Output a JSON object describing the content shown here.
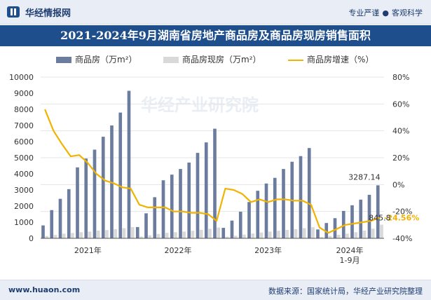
{
  "header": {
    "brand": "华经情报网",
    "slogan_left": "专业严谨",
    "slogan_dot": "●",
    "slogan_right": "客观科学"
  },
  "watermark": "华经产业研究院",
  "footer": {
    "site": "www.huaon.com",
    "source": "数据来源：国家统计局，华经产业研究院整理"
  },
  "colors": {
    "bar_primary": "#6b7c9e",
    "bar_secondary": "#d9d9d9",
    "line": "#f2b200",
    "title_bg": "#1f4e8c"
  },
  "chart_data": {
    "type": "bar+line",
    "title": "2021-2024年9月湖南省房地产商品房及商品房现房销售面积",
    "year_labels": [
      "2021年",
      "2022年",
      "2023年",
      "2024年\n1-9月"
    ],
    "series": [
      {
        "name": "商品房（万m²）",
        "type": "bar",
        "axis": "left",
        "values": [
          800,
          1750,
          2450,
          3050,
          4400,
          4950,
          5500,
          6300,
          7000,
          7800,
          9150,
          700,
          1550,
          2550,
          3600,
          3950,
          4300,
          4700,
          5300,
          5950,
          6800,
          650,
          1100,
          1650,
          2250,
          2950,
          3400,
          3750,
          4300,
          4750,
          5100,
          5600,
          550,
          950,
          1250,
          1700,
          2050,
          2400,
          2700,
          3287.14
        ]
      },
      {
        "name": "商品房现房（万m²）",
        "type": "bar",
        "axis": "left",
        "values": [
          140,
          210,
          290,
          330,
          380,
          420,
          480,
          510,
          570,
          630,
          700,
          110,
          190,
          270,
          340,
          380,
          420,
          470,
          530,
          590,
          670,
          100,
          160,
          230,
          300,
          360,
          420,
          470,
          520,
          570,
          630,
          690,
          80,
          150,
          220,
          290,
          380,
          480,
          600,
          845.8
        ]
      },
      {
        "name": "商品房增速（%）",
        "type": "line",
        "axis": "right",
        "values": [
          56,
          40,
          30,
          21,
          22,
          16,
          8,
          3,
          1,
          -2,
          -3,
          -15,
          -17,
          -17,
          -17,
          -20,
          -20,
          -21,
          -21,
          -22,
          -27,
          -3,
          -4,
          -7,
          -13,
          -11,
          -13,
          -11,
          -11,
          -12,
          -12,
          -15,
          -32,
          -36,
          -33,
          -30,
          -29,
          -28,
          -27,
          -24.56
        ]
      }
    ],
    "left_axis": {
      "min": 0,
      "max": 10000,
      "step": 1000
    },
    "right_axis": {
      "min": -40,
      "max": 80,
      "step": 20,
      "unit": "%"
    },
    "annotations": [
      {
        "text": "3287.14",
        "series": 0,
        "index": 39
      },
      {
        "text": "-24.56%",
        "series": 2,
        "index": 39
      },
      {
        "text": "845.8",
        "series": 1,
        "index": 39
      }
    ]
  }
}
